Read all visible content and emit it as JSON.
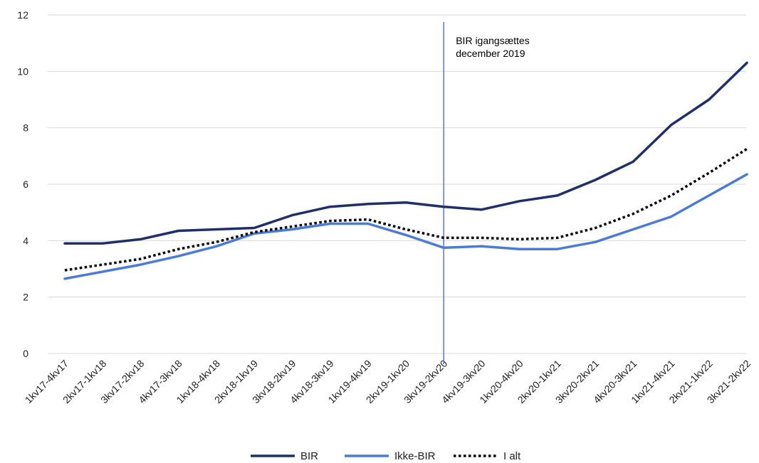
{
  "chart_data": {
    "type": "line",
    "categories": [
      "1kv17-4kv17",
      "2kv17-1kv18",
      "3kv17-2kv18",
      "4kv17-3kv18",
      "1kv18-4kv18",
      "2kv18-1kv19",
      "3kv18-2kv19",
      "4kv18-3kv19",
      "1kv19-4kv19",
      "2kv19-1kv20",
      "3kv19-2kv20",
      "4kv19-3kv20",
      "1kv20-4kv20",
      "2kv20-1kv21",
      "3kv20-2kv21",
      "4kv20-3kv21",
      "1kv21-4kv21",
      "2kv21-1kv22",
      "3kv21-2kv22"
    ],
    "series": [
      {
        "name": "BIR",
        "color": "#1f2f6b",
        "style": "solid",
        "values": [
          3.9,
          3.9,
          4.05,
          4.35,
          4.4,
          4.45,
          4.9,
          5.2,
          5.3,
          5.35,
          5.2,
          5.1,
          5.4,
          5.6,
          6.15,
          6.8,
          8.1,
          9.0,
          10.3
        ]
      },
      {
        "name": "Ikke-BIR",
        "color": "#4a7bd8",
        "style": "solid",
        "values": [
          2.65,
          2.9,
          3.15,
          3.45,
          3.8,
          4.25,
          4.4,
          4.6,
          4.6,
          4.2,
          3.75,
          3.8,
          3.7,
          3.7,
          3.95,
          4.4,
          4.85,
          5.6,
          6.35
        ]
      },
      {
        "name": "I alt",
        "color": "#000000",
        "style": "dotted",
        "values": [
          2.95,
          3.15,
          3.35,
          3.7,
          3.95,
          4.3,
          4.5,
          4.7,
          4.75,
          4.4,
          4.1,
          4.1,
          4.05,
          4.1,
          4.45,
          4.95,
          5.6,
          6.4,
          7.25
        ]
      }
    ],
    "yticks": [
      0,
      2,
      4,
      6,
      8,
      10,
      12
    ],
    "ylim": [
      0,
      12
    ],
    "grid": true,
    "legend_position": "bottom",
    "annotation": {
      "lines": [
        "BIR igangsættes",
        "december 2019"
      ],
      "category_index": 10,
      "color": "#4a7bd8"
    }
  }
}
